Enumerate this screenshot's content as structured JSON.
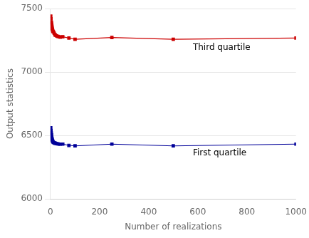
{
  "chart_data": {
    "type": "line",
    "xlabel": "Number of realizations",
    "ylabel": "Output statistics",
    "xlim": [
      0,
      1000
    ],
    "ylim": [
      6000,
      7500
    ],
    "xticks": [
      0,
      200,
      400,
      600,
      800,
      1000
    ],
    "yticks": [
      6000,
      6500,
      7000,
      7500
    ],
    "grid": "y",
    "marker": "square",
    "x": [
      1,
      2,
      3,
      4,
      5,
      6,
      7,
      8,
      9,
      10,
      12,
      15,
      18,
      20,
      25,
      30,
      35,
      40,
      50,
      75,
      100,
      250,
      500,
      1000
    ],
    "series": [
      {
        "color": "#cc0000",
        "values": [
          7440,
          7420,
          7395,
          7385,
          7375,
          7360,
          7345,
          7335,
          7325,
          7320,
          7315,
          7305,
          7295,
          7290,
          7285,
          7280,
          7278,
          7275,
          7278,
          7268,
          7258,
          7272,
          7258,
          7268
        ]
      },
      {
        "color": "#000099",
        "values": [
          6560,
          6540,
          6520,
          6505,
          6490,
          6478,
          6468,
          6460,
          6455,
          6450,
          6445,
          6442,
          6440,
          6438,
          6436,
          6434,
          6432,
          6432,
          6432,
          6422,
          6418,
          6432,
          6418,
          6432
        ]
      }
    ],
    "annotations": [
      {
        "text": "Third quartile",
        "x": 580,
        "y": 7190
      },
      {
        "text": "First quartile",
        "x": 580,
        "y": 6360
      }
    ]
  }
}
